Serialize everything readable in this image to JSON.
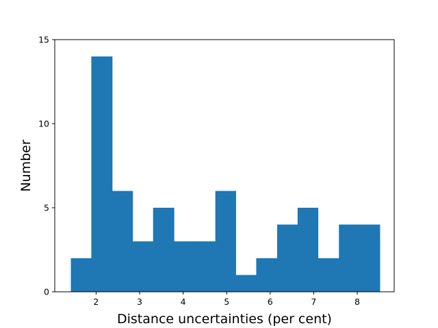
{
  "chart_data": {
    "type": "bar",
    "subtype": "histogram",
    "xlabel": "Distance uncertainties (per cent)",
    "ylabel": "Number",
    "xlim": [
      1.05,
      8.85
    ],
    "ylim": [
      0,
      15
    ],
    "xticks": [
      2,
      3,
      4,
      5,
      6,
      7,
      8
    ],
    "yticks": [
      0,
      5,
      10,
      15
    ],
    "bin_edges": [
      1.42,
      1.89,
      2.37,
      2.84,
      3.31,
      3.79,
      4.26,
      4.74,
      5.21,
      5.68,
      6.16,
      6.63,
      7.1,
      7.58,
      8.05,
      8.52
    ],
    "values": [
      2,
      14,
      6,
      3,
      5,
      3,
      3,
      6,
      1,
      2,
      4,
      5,
      2,
      4,
      4
    ],
    "bar_color": "#1f77b4",
    "grid": false,
    "legend": "none"
  }
}
